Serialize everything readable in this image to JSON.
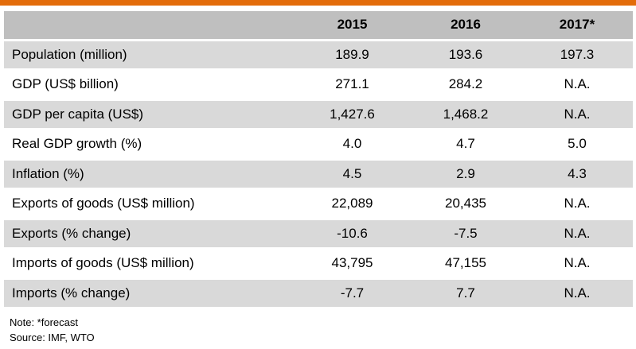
{
  "table": {
    "header": {
      "label": "",
      "years": [
        "2015",
        "2016",
        "2017*"
      ]
    },
    "rows": [
      {
        "label": "Population (million)",
        "values": [
          "189.9",
          "193.6",
          "197.3"
        ]
      },
      {
        "label": "GDP (US$ billion)",
        "values": [
          "271.1",
          "284.2",
          "N.A."
        ]
      },
      {
        "label": "GDP per capita (US$)",
        "values": [
          "1,427.6",
          "1,468.2",
          "N.A."
        ]
      },
      {
        "label": "Real GDP growth (%)",
        "values": [
          "4.0",
          "4.7",
          "5.0"
        ]
      },
      {
        "label": "Inflation (%)",
        "values": [
          "4.5",
          "2.9",
          "4.3"
        ]
      },
      {
        "label": "Exports of goods (US$ million)",
        "values": [
          "22,089",
          "20,435",
          "N.A."
        ]
      },
      {
        "label": "Exports (% change)",
        "values": [
          "-10.6",
          "-7.5",
          "N.A."
        ]
      },
      {
        "label": "Imports of goods (US$ million)",
        "values": [
          "43,795",
          "47,155",
          "N.A."
        ]
      },
      {
        "label": "Imports (% change)",
        "values": [
          "-7.7",
          "7.7",
          "N.A."
        ]
      }
    ]
  },
  "notes": {
    "note": "Note: *forecast",
    "source": "Source: IMF, WTO"
  },
  "colors": {
    "accent_bar": "#e36c0a",
    "header_bg": "#bfbfbf",
    "shaded_row_bg": "#d9d9d9"
  }
}
